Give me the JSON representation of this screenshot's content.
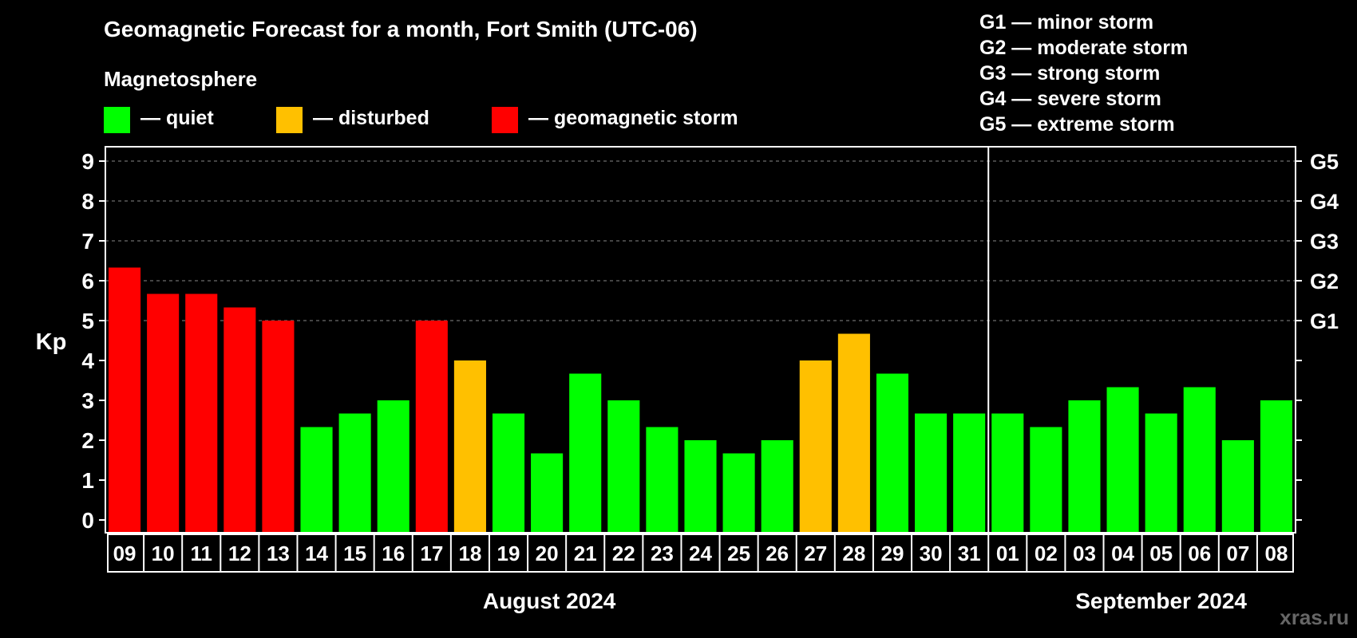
{
  "header": {
    "title": "Geomagnetic Forecast for a month, Fort Smith (UTC-06)",
    "subtitle": "Magnetosphere"
  },
  "legend": [
    {
      "label": "— quiet",
      "color": "#00ff00"
    },
    {
      "label": "— disturbed",
      "color": "#ffc000"
    },
    {
      "label": "— geomagnetic storm",
      "color": "#ff0000"
    }
  ],
  "storm_scale": [
    "G1 — minor storm",
    "G2 — moderate storm",
    "G3 — strong storm",
    "G4 — severe storm",
    "G5 — extreme storm"
  ],
  "watermark": "xras.ru",
  "chart_data": {
    "type": "bar",
    "ylabel": "Kp",
    "ylim": [
      0,
      9
    ],
    "yticks": [
      "0",
      "1",
      "2",
      "3",
      "4",
      "5",
      "6",
      "7",
      "8",
      "9"
    ],
    "right_ticks": [
      {
        "value": 5,
        "label": "G1"
      },
      {
        "value": 6,
        "label": "G2"
      },
      {
        "value": 7,
        "label": "G3"
      },
      {
        "value": 8,
        "label": "G4"
      },
      {
        "value": 9,
        "label": "G5"
      }
    ],
    "grid": "dashed horizontal at 5–9",
    "months": [
      {
        "label": "August 2024",
        "days": 23
      },
      {
        "label": "September 2024",
        "days": 8
      }
    ],
    "categories": [
      "09",
      "10",
      "11",
      "12",
      "13",
      "14",
      "15",
      "16",
      "17",
      "18",
      "19",
      "20",
      "21",
      "22",
      "23",
      "24",
      "25",
      "26",
      "27",
      "28",
      "29",
      "30",
      "31",
      "01",
      "02",
      "03",
      "04",
      "05",
      "06",
      "07",
      "08"
    ],
    "values": [
      6.33,
      5.67,
      5.67,
      5.33,
      5.0,
      2.33,
      2.67,
      3.0,
      5.0,
      4.0,
      2.67,
      1.67,
      3.67,
      3.0,
      2.33,
      2.0,
      1.67,
      2.0,
      4.0,
      4.67,
      3.67,
      2.67,
      2.67,
      2.67,
      2.33,
      3.0,
      3.33,
      2.67,
      3.33,
      2.0,
      3.0
    ],
    "status": [
      "storm",
      "storm",
      "storm",
      "storm",
      "storm",
      "quiet",
      "quiet",
      "quiet",
      "storm",
      "disturbed",
      "quiet",
      "quiet",
      "quiet",
      "quiet",
      "quiet",
      "quiet",
      "quiet",
      "quiet",
      "disturbed",
      "disturbed",
      "quiet",
      "quiet",
      "quiet",
      "quiet",
      "quiet",
      "quiet",
      "quiet",
      "quiet",
      "quiet",
      "quiet",
      "quiet"
    ],
    "colors": {
      "quiet": "#00ff00",
      "disturbed": "#ffc000",
      "storm": "#ff0000"
    }
  }
}
